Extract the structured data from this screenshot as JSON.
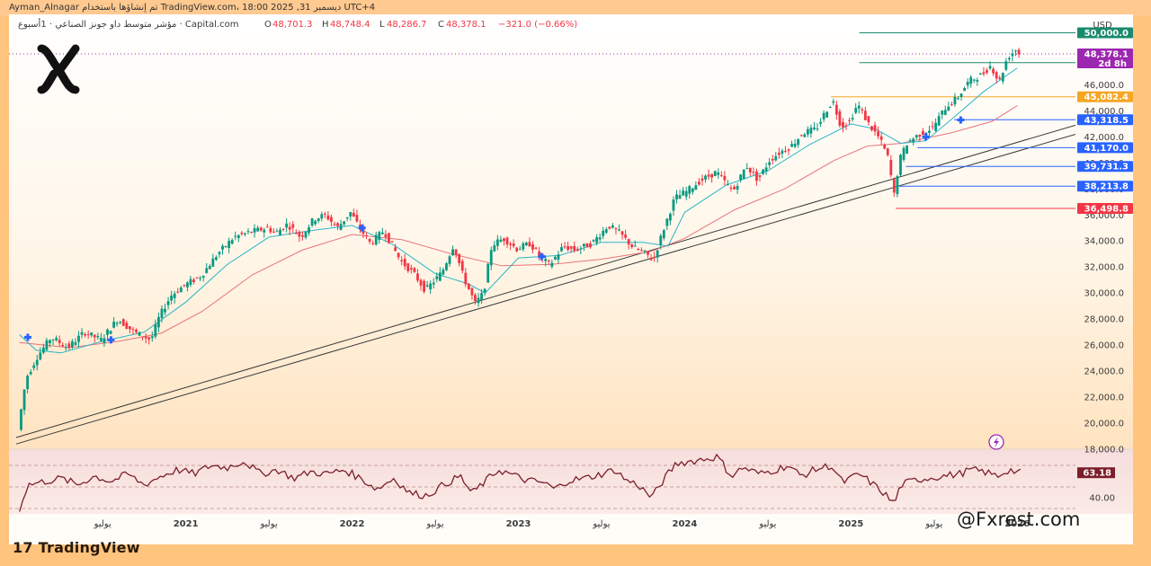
{
  "header": {
    "author_line": "Ayman_Alnagar تم إنشاؤها باستخدام TradingView.com، 18:00 2025 ,31 ديسمبر UTC+4"
  },
  "symbol_line": {
    "name": "مؤشر متوسط داو جونز الصناعي · 1أسبوع · Capital.com",
    "open_label": "O",
    "open": "48,701.3",
    "high_label": "H",
    "high": "48,748.4",
    "low_label": "L",
    "low": "48,286.7",
    "close_label": "C",
    "close": "48,378.1",
    "change": "−321.0 (−0.66%)"
  },
  "currency": "USD",
  "watermark": "@Fxrest.com",
  "branding": {
    "name": "TradingView",
    "mark": "17"
  },
  "colors": {
    "up": "#089981",
    "down": "#f23645",
    "ema_fast": "#2bb6c8",
    "ema_slow": "#e9747a",
    "rsi": "#7b1f2a",
    "trendline": "#3a3a3a",
    "blue_level": "#2962ff",
    "red_level": "#f23645",
    "green_level": "#1a8a6e",
    "orange_level": "#f5a623",
    "current": "#9c27b0",
    "marker": "#2962ff"
  },
  "chart_data": {
    "type": "candlestick",
    "title": "مؤشر متوسط داو جونز الصناعي · 1أسبوع · Capital.com",
    "ylabel": "USD",
    "ylim": [
      18000,
      51000
    ],
    "y_ticks": [
      "18,000.0",
      "20,000.0",
      "22,000.0",
      "24,000.0",
      "26,000.0",
      "28,000.0",
      "30,000.0",
      "32,000.0",
      "34,000.0",
      "36,000.0",
      "38,000.0",
      "40,000.0",
      "42,000.0",
      "44,000.0",
      "46,000.0"
    ],
    "y_tick_values": [
      18000,
      20000,
      22000,
      24000,
      26000,
      28000,
      30000,
      32000,
      34000,
      36000,
      38000,
      40000,
      42000,
      44000,
      46000
    ],
    "x_ticks": [
      {
        "label": "يوليو",
        "date": 2020.5
      },
      {
        "label": "2021",
        "date": 2021.0
      },
      {
        "label": "يوليو",
        "date": 2021.5
      },
      {
        "label": "2022",
        "date": 2022.0
      },
      {
        "label": "يوليو",
        "date": 2022.5
      },
      {
        "label": "2023",
        "date": 2023.0
      },
      {
        "label": "يوليو",
        "date": 2023.5
      },
      {
        "label": "2024",
        "date": 2024.0
      },
      {
        "label": "يوليو",
        "date": 2024.5
      },
      {
        "label": "2025",
        "date": 2025.0
      },
      {
        "label": "يوليو",
        "date": 2025.5
      },
      {
        "label": "2026",
        "date": 2026.0
      }
    ],
    "x_range": [
      2019.98,
      2026.35
    ],
    "price_path": [
      [
        2020.0,
        19500
      ],
      [
        2020.05,
        23500
      ],
      [
        2020.12,
        25200
      ],
      [
        2020.2,
        26600
      ],
      [
        2020.3,
        25800
      ],
      [
        2020.4,
        27000
      ],
      [
        2020.5,
        26400
      ],
      [
        2020.6,
        28000
      ],
      [
        2020.7,
        27000
      ],
      [
        2020.8,
        26400
      ],
      [
        2020.85,
        28200
      ],
      [
        2020.92,
        29800
      ],
      [
        2021.0,
        30600
      ],
      [
        2021.1,
        31300
      ],
      [
        2021.2,
        33000
      ],
      [
        2021.3,
        34300
      ],
      [
        2021.4,
        34700
      ],
      [
        2021.5,
        35000
      ],
      [
        2021.55,
        34600
      ],
      [
        2021.62,
        35300
      ],
      [
        2021.7,
        34300
      ],
      [
        2021.78,
        35700
      ],
      [
        2021.85,
        36000
      ],
      [
        2021.92,
        35000
      ],
      [
        2022.0,
        36200
      ],
      [
        2022.05,
        35100
      ],
      [
        2022.12,
        33800
      ],
      [
        2022.2,
        34800
      ],
      [
        2022.3,
        32500
      ],
      [
        2022.38,
        31500
      ],
      [
        2022.45,
        30200
      ],
      [
        2022.55,
        31600
      ],
      [
        2022.62,
        33700
      ],
      [
        2022.68,
        31200
      ],
      [
        2022.75,
        29200
      ],
      [
        2022.8,
        30000
      ],
      [
        2022.85,
        33700
      ],
      [
        2022.92,
        34200
      ],
      [
        2023.0,
        33400
      ],
      [
        2023.08,
        33800
      ],
      [
        2023.15,
        32600
      ],
      [
        2023.2,
        32200
      ],
      [
        2023.28,
        33600
      ],
      [
        2023.35,
        33300
      ],
      [
        2023.45,
        33800
      ],
      [
        2023.55,
        35200
      ],
      [
        2023.62,
        34600
      ],
      [
        2023.7,
        33500
      ],
      [
        2023.78,
        33000
      ],
      [
        2023.82,
        32500
      ],
      [
        2023.88,
        34800
      ],
      [
        2023.95,
        37300
      ],
      [
        2024.02,
        37800
      ],
      [
        2024.1,
        38600
      ],
      [
        2024.2,
        39300
      ],
      [
        2024.3,
        37800
      ],
      [
        2024.38,
        39800
      ],
      [
        2024.45,
        38700
      ],
      [
        2024.52,
        40200
      ],
      [
        2024.58,
        40800
      ],
      [
        2024.65,
        41300
      ],
      [
        2024.72,
        42300
      ],
      [
        2024.8,
        42600
      ],
      [
        2024.85,
        43800
      ],
      [
        2024.9,
        44800
      ],
      [
        2024.95,
        42800
      ],
      [
        2025.0,
        43200
      ],
      [
        2025.05,
        44500
      ],
      [
        2025.12,
        42900
      ],
      [
        2025.18,
        41900
      ],
      [
        2025.23,
        40500
      ],
      [
        2025.27,
        37500
      ],
      [
        2025.3,
        40200
      ],
      [
        2025.35,
        41600
      ],
      [
        2025.42,
        42200
      ],
      [
        2025.5,
        42700
      ],
      [
        2025.58,
        44300
      ],
      [
        2025.65,
        45000
      ],
      [
        2025.72,
        46300
      ],
      [
        2025.8,
        46800
      ],
      [
        2025.85,
        47500
      ],
      [
        2025.9,
        46200
      ],
      [
        2025.95,
        48100
      ],
      [
        2026.0,
        48700
      ],
      [
        2026.02,
        48378
      ]
    ],
    "ema_fast_path": [
      [
        2020.0,
        26800
      ],
      [
        2020.1,
        25600
      ],
      [
        2020.25,
        25400
      ],
      [
        2020.5,
        26300
      ],
      [
        2020.75,
        27000
      ],
      [
        2021.0,
        29300
      ],
      [
        2021.25,
        32200
      ],
      [
        2021.5,
        34300
      ],
      [
        2021.75,
        34800
      ],
      [
        2022.0,
        35200
      ],
      [
        2022.25,
        33700
      ],
      [
        2022.5,
        31500
      ],
      [
        2022.7,
        30700
      ],
      [
        2022.8,
        30000
      ],
      [
        2023.0,
        32700
      ],
      [
        2023.25,
        32900
      ],
      [
        2023.5,
        33900
      ],
      [
        2023.75,
        33900
      ],
      [
        2023.9,
        33600
      ],
      [
        2024.0,
        36200
      ],
      [
        2024.25,
        38300
      ],
      [
        2024.5,
        39400
      ],
      [
        2024.75,
        41400
      ],
      [
        2025.0,
        43000
      ],
      [
        2025.15,
        42600
      ],
      [
        2025.3,
        41500
      ],
      [
        2025.45,
        41700
      ],
      [
        2025.6,
        43300
      ],
      [
        2025.8,
        45500
      ],
      [
        2026.0,
        47300
      ]
    ],
    "ema_slow_path": [
      [
        2020.0,
        26200
      ],
      [
        2020.3,
        25800
      ],
      [
        2020.6,
        26300
      ],
      [
        2020.85,
        26900
      ],
      [
        2021.1,
        28600
      ],
      [
        2021.4,
        31400
      ],
      [
        2021.7,
        33300
      ],
      [
        2022.0,
        34500
      ],
      [
        2022.3,
        34100
      ],
      [
        2022.6,
        33000
      ],
      [
        2022.9,
        32100
      ],
      [
        2023.2,
        32200
      ],
      [
        2023.5,
        32600
      ],
      [
        2023.8,
        33200
      ],
      [
        2024.0,
        34200
      ],
      [
        2024.3,
        36400
      ],
      [
        2024.6,
        38000
      ],
      [
        2024.9,
        40200
      ],
      [
        2025.1,
        41300
      ],
      [
        2025.3,
        41500
      ],
      [
        2025.6,
        42300
      ],
      [
        2025.85,
        43200
      ],
      [
        2026.0,
        44400
      ]
    ],
    "trendlines": [
      {
        "from": [
          2019.98,
          18400
        ],
        "to": [
          2026.35,
          42200
        ]
      },
      {
        "from": [
          2019.98,
          18900
        ],
        "to": [
          2026.35,
          42900
        ]
      }
    ],
    "levels": [
      {
        "value": 50000,
        "label": "50,000.0",
        "color": "#1a8a6e",
        "x_start": 2025.05
      },
      {
        "value": 47700,
        "label": "47,700.0",
        "color": "#1a8a6e",
        "x_start": 2025.05
      },
      {
        "value": 45082.4,
        "label": "45,082.4",
        "color": "#f5a623",
        "x_start": 2024.88
      },
      {
        "value": 43318.5,
        "label": "43,318.5",
        "color": "#2962ff",
        "x_start": 2025.62
      },
      {
        "value": 41170.0,
        "label": "41,170.0",
        "color": "#2962ff",
        "x_start": 2025.4
      },
      {
        "value": 39731.3,
        "label": "39,731.3",
        "color": "#2962ff",
        "x_start": 2025.33
      },
      {
        "value": 38213.8,
        "label": "38,213.8",
        "color": "#2962ff",
        "x_start": 2025.29
      },
      {
        "value": 36498.8,
        "label": "36,498.8",
        "color": "#f23645",
        "x_start": 2025.27
      }
    ],
    "current_price": {
      "value": 48378.1,
      "label": "48,378.1",
      "countdown": "2d 8h"
    },
    "markers": [
      {
        "date": 2020.05,
        "value": 26600
      },
      {
        "date": 2020.55,
        "value": 26400
      },
      {
        "date": 2022.06,
        "value": 35000
      },
      {
        "date": 2023.14,
        "value": 32800
      },
      {
        "date": 2025.45,
        "value": 42000
      },
      {
        "date": 2025.66,
        "value": 43300
      }
    ],
    "rsi": {
      "label": "63.18",
      "value": 63.18,
      "visible_tick": "40.00",
      "ylim": [
        25,
        85
      ],
      "bands": [
        70,
        50,
        30
      ],
      "path": [
        [
          2020.0,
          30
        ],
        [
          2020.05,
          52
        ],
        [
          2020.15,
          55
        ],
        [
          2020.25,
          58
        ],
        [
          2020.35,
          52
        ],
        [
          2020.45,
          60
        ],
        [
          2020.55,
          55
        ],
        [
          2020.65,
          62
        ],
        [
          2020.75,
          52
        ],
        [
          2020.85,
          60
        ],
        [
          2020.95,
          66
        ],
        [
          2021.05,
          62
        ],
        [
          2021.15,
          70
        ],
        [
          2021.25,
          68
        ],
        [
          2021.35,
          74
        ],
        [
          2021.45,
          62
        ],
        [
          2021.55,
          66
        ],
        [
          2021.65,
          58
        ],
        [
          2021.75,
          64
        ],
        [
          2021.85,
          62
        ],
        [
          2021.95,
          66
        ],
        [
          2022.05,
          58
        ],
        [
          2022.15,
          48
        ],
        [
          2022.25,
          58
        ],
        [
          2022.35,
          44
        ],
        [
          2022.45,
          42
        ],
        [
          2022.55,
          52
        ],
        [
          2022.65,
          60
        ],
        [
          2022.72,
          44
        ],
        [
          2022.8,
          55
        ],
        [
          2022.88,
          66
        ],
        [
          2022.95,
          62
        ],
        [
          2023.05,
          56
        ],
        [
          2023.15,
          54
        ],
        [
          2023.22,
          48
        ],
        [
          2023.3,
          56
        ],
        [
          2023.4,
          58
        ],
        [
          2023.5,
          62
        ],
        [
          2023.58,
          66
        ],
        [
          2023.65,
          56
        ],
        [
          2023.72,
          52
        ],
        [
          2023.8,
          40
        ],
        [
          2023.88,
          58
        ],
        [
          2023.95,
          72
        ],
        [
          2024.05,
          74
        ],
        [
          2024.12,
          76
        ],
        [
          2024.2,
          78
        ],
        [
          2024.28,
          60
        ],
        [
          2024.35,
          68
        ],
        [
          2024.45,
          62
        ],
        [
          2024.55,
          66
        ],
        [
          2024.62,
          70
        ],
        [
          2024.7,
          60
        ],
        [
          2024.78,
          66
        ],
        [
          2024.88,
          70
        ],
        [
          2024.95,
          54
        ],
        [
          2025.05,
          62
        ],
        [
          2025.12,
          54
        ],
        [
          2025.2,
          44
        ],
        [
          2025.26,
          34
        ],
        [
          2025.3,
          52
        ],
        [
          2025.38,
          56
        ],
        [
          2025.45,
          58
        ],
        [
          2025.55,
          60
        ],
        [
          2025.65,
          62
        ],
        [
          2025.72,
          66
        ],
        [
          2025.8,
          64
        ],
        [
          2025.88,
          60
        ],
        [
          2025.95,
          66
        ],
        [
          2026.02,
          63
        ]
      ]
    }
  }
}
